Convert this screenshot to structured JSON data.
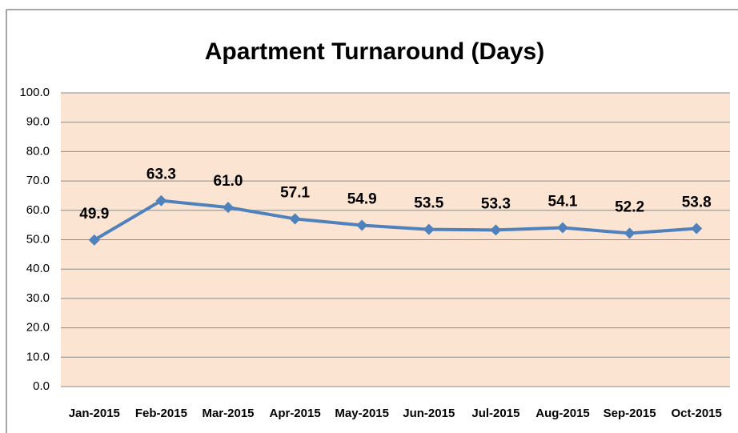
{
  "chart_data": {
    "type": "line",
    "title": "Apartment Turnaround (Days)",
    "categories": [
      "Jan-2015",
      "Feb-2015",
      "Mar-2015",
      "Apr-2015",
      "May-2015",
      "Jun-2015",
      "Jul-2015",
      "Aug-2015",
      "Sep-2015",
      "Oct-2015"
    ],
    "values": [
      49.9,
      63.3,
      61.0,
      57.1,
      54.9,
      53.5,
      53.3,
      54.1,
      52.2,
      53.8
    ],
    "value_labels": [
      "49.9",
      "63.3",
      "61.0",
      "57.1",
      "54.9",
      "53.5",
      "53.3",
      "54.1",
      "52.2",
      "53.8"
    ],
    "color": "#4f81bd",
    "ylim": [
      0,
      100
    ],
    "yticks": [
      {
        "value": 0,
        "label": "0.0"
      },
      {
        "value": 10,
        "label": "10.0"
      },
      {
        "value": 20,
        "label": "20.0"
      },
      {
        "value": 30,
        "label": "30.0"
      },
      {
        "value": 40,
        "label": "40.0"
      },
      {
        "value": 50,
        "label": "50.0"
      },
      {
        "value": 60,
        "label": "60.0"
      },
      {
        "value": 70,
        "label": "70.0"
      },
      {
        "value": 80,
        "label": "80.0"
      },
      {
        "value": 90,
        "label": "90.0"
      },
      {
        "value": 100,
        "label": "100.0"
      }
    ],
    "grid": true
  }
}
